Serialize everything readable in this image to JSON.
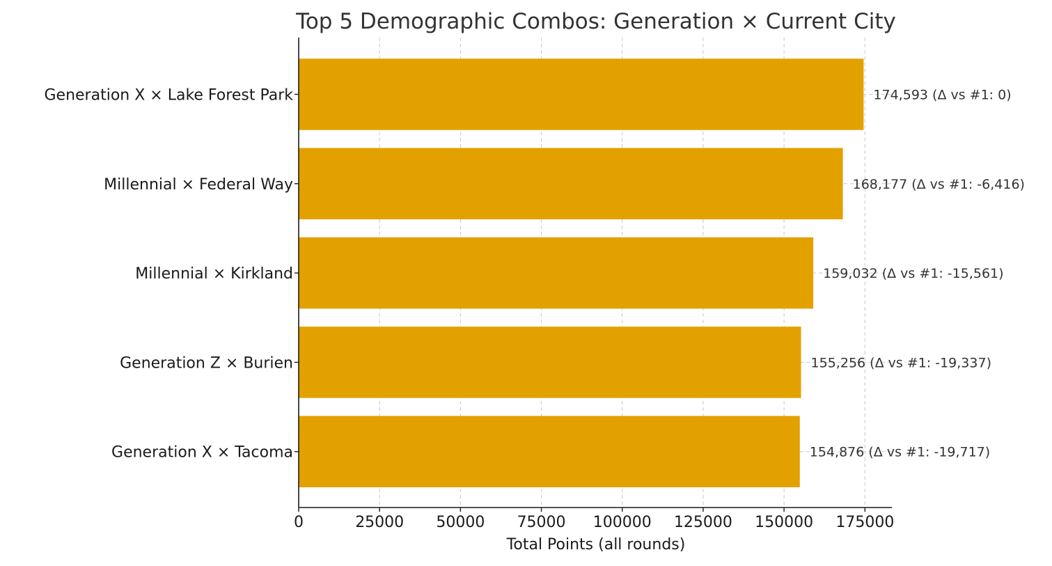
{
  "chart_data": {
    "type": "bar",
    "orientation": "horizontal",
    "title": "Top 5 Demographic Combos: Generation × Current City",
    "xlabel": "Total Points (all rounds)",
    "ylabel": "",
    "categories": [
      "Generation X × Lake Forest Park",
      "Millennial × Federal Way",
      "Millennial × Kirkland",
      "Generation Z × Burien",
      "Generation X × Tacoma"
    ],
    "values": [
      174593,
      168177,
      159032,
      155256,
      154876
    ],
    "bar_labels": [
      "174,593 (Δ vs #1: 0)",
      "168,177 (Δ vs #1: -6,416)",
      "159,032 (Δ vs #1: -15,561)",
      "155,256 (Δ vs #1: -19,337)",
      "154,876 (Δ vs #1: -19,717)"
    ],
    "xticks": [
      0,
      25000,
      50000,
      75000,
      100000,
      125000,
      150000,
      175000
    ],
    "xtick_labels": [
      "0",
      "25000",
      "50000",
      "75000",
      "100000",
      "125000",
      "150000",
      "175000"
    ],
    "xlim": [
      0,
      183322
    ],
    "grid": "x-axis dashed",
    "bar_color": "#E3A100"
  }
}
